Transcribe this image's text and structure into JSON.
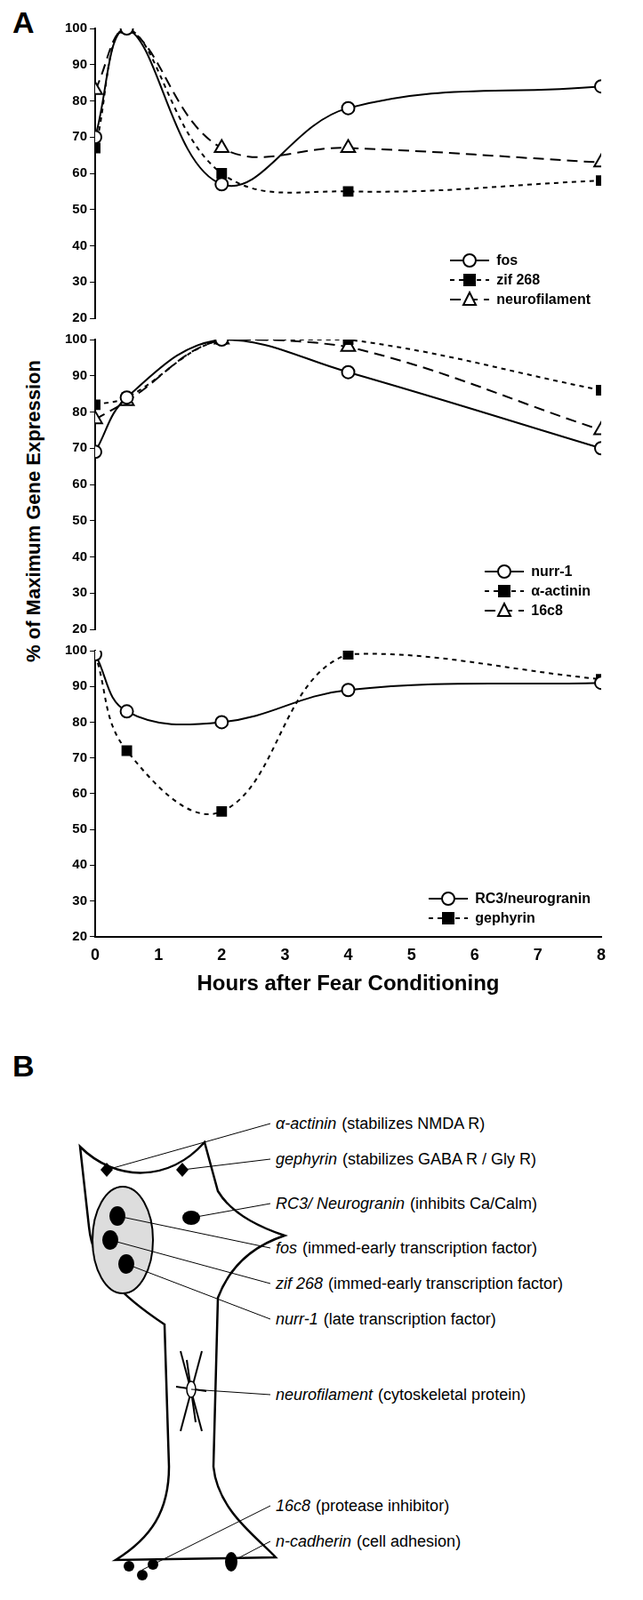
{
  "figure": {
    "panel_labels": {
      "a": "A",
      "b": "B"
    },
    "y_label": "% of Maximum Gene Expression"
  },
  "chart_data": [
    {
      "type": "line",
      "x": [
        0,
        0.5,
        2,
        4,
        8
      ],
      "xlim": [
        0,
        8
      ],
      "xticks": [
        0,
        1,
        2,
        3,
        4,
        5,
        6,
        7,
        8
      ],
      "ylim": [
        20,
        100
      ],
      "yticks": [
        20,
        30,
        40,
        50,
        60,
        70,
        80,
        90,
        100
      ],
      "grid": false,
      "legend": "lower right",
      "tick_labels": "y",
      "series": [
        {
          "name": "fos",
          "color": "#000000",
          "marker": "circle",
          "line_style": "solid",
          "values": [
            70,
            100,
            57,
            78,
            84
          ]
        },
        {
          "name": "zif 268",
          "color": "#000000",
          "marker": "square",
          "line_style": "dotted",
          "values": [
            67,
            100,
            60,
            55,
            58
          ]
        },
        {
          "name": "neurofilament",
          "color": "#000000",
          "marker": "triangle",
          "line_style": "dashed",
          "values": [
            83,
            100,
            67,
            67,
            63
          ]
        }
      ]
    },
    {
      "type": "line",
      "x": [
        0,
        0.5,
        2,
        4,
        8
      ],
      "xlim": [
        0,
        8
      ],
      "xticks": [
        0,
        1,
        2,
        3,
        4,
        5,
        6,
        7,
        8
      ],
      "ylim": [
        20,
        100
      ],
      "yticks": [
        20,
        30,
        40,
        50,
        60,
        70,
        80,
        90,
        100
      ],
      "grid": false,
      "legend": "lower right",
      "tick_labels": "y",
      "series": [
        {
          "name": "nurr-1",
          "color": "#000000",
          "marker": "circle",
          "line_style": "solid",
          "values": [
            69,
            84,
            100,
            91,
            70
          ]
        },
        {
          "name": "α-actinin",
          "color": "#000000",
          "marker": "square",
          "line_style": "dotted",
          "values": [
            82,
            84,
            100,
            100,
            86
          ]
        },
        {
          "name": "16c8",
          "color": "#000000",
          "marker": "triangle",
          "line_style": "dashed",
          "values": [
            78,
            83,
            100,
            98,
            75
          ]
        }
      ]
    },
    {
      "type": "line",
      "x": [
        0,
        0.5,
        2,
        4,
        8
      ],
      "xlim": [
        0,
        8
      ],
      "xticks": [
        0,
        1,
        2,
        3,
        4,
        5,
        6,
        7,
        8
      ],
      "ylim": [
        20,
        100
      ],
      "yticks": [
        20,
        30,
        40,
        50,
        60,
        70,
        80,
        90,
        100
      ],
      "x_label": "Hours after Fear Conditioning",
      "grid": false,
      "legend": "lower right",
      "series": [
        {
          "name": "RC3/neurogranin",
          "color": "#000000",
          "marker": "circle",
          "line_style": "solid",
          "values": [
            99,
            83,
            80,
            89,
            91
          ]
        },
        {
          "name": "gephyrin",
          "color": "#000000",
          "marker": "square",
          "line_style": "dotted",
          "values": [
            99,
            72,
            55,
            99,
            92
          ]
        }
      ]
    }
  ],
  "diagram": {
    "items": [
      {
        "gene": "α-actinin",
        "note": "(stabilizes NMDA R)"
      },
      {
        "gene": "gephyrin",
        "note": "(stabilizes GABA R / Gly R)"
      },
      {
        "gene": "RC3/ Neurogranin",
        "note": "(inhibits Ca/Calm)"
      },
      {
        "gene": "fos",
        "note": "(immed-early transcription factor)"
      },
      {
        "gene": "zif 268",
        "note": "(immed-early transcription factor)"
      },
      {
        "gene": "nurr-1",
        "note": "(late transcription factor)"
      },
      {
        "gene": "neurofilament",
        "note": "(cytoskeletal protein)"
      },
      {
        "gene": "16c8",
        "note": "(protease inhibitor)"
      },
      {
        "gene": "n-cadherin",
        "note": "(cell adhesion)"
      }
    ]
  }
}
